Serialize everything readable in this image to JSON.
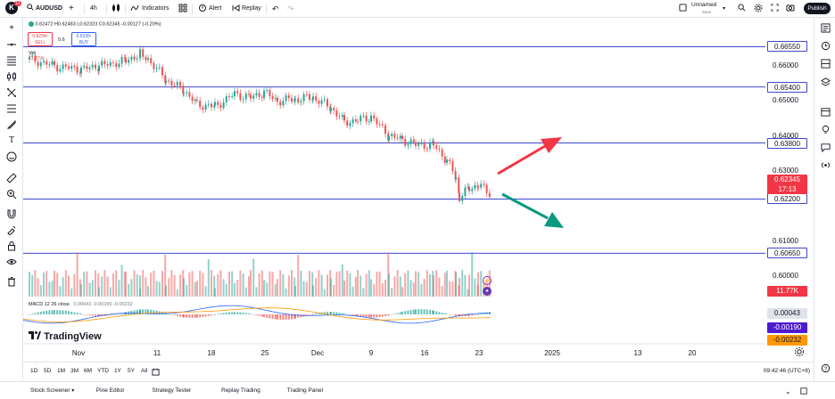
{
  "toolbar": {
    "logo_letter": "K",
    "logo_badge": "11",
    "symbol": "AUDUSD",
    "add_symbol": "+",
    "interval": "4h",
    "indicators_label": "Indicators",
    "alert_label": "Alert",
    "replay_label": "Replay",
    "layout_name": "Unnamed",
    "layout_status": "Save",
    "publish_label": "Publish"
  },
  "legend": {
    "ohlc": "0.62472 H0.62483 L0.62323 C0.62345 -0.00127 (-0.20%)",
    "sell_price": "0.6234⁵",
    "sell_label": "SELL",
    "spread": "0.6",
    "buy_price": "0.6235¹",
    "buy_label": "BUY",
    "vol_label": "Vol",
    "vol_value": "11.77K",
    "macd_label": "MACD 12 26 close",
    "macd_values": "0.00043  -0.00190  -0.00232"
  },
  "price_levels": [
    {
      "label": "0.66550",
      "value": 0.6655,
      "kind": "line"
    },
    {
      "label": "0.65400",
      "value": 0.654,
      "kind": "line"
    },
    {
      "label": "0.63800",
      "value": 0.638,
      "kind": "line"
    },
    {
      "label": "0.62200",
      "value": 0.622,
      "kind": "line"
    },
    {
      "label": "0.60650",
      "value": 0.6065,
      "kind": "line"
    }
  ],
  "price_ticks": [
    {
      "label": "0.66000",
      "value": 0.66
    },
    {
      "label": "0.65000",
      "value": 0.65
    },
    {
      "label": "0.64000",
      "value": 0.64
    },
    {
      "label": "0.63000",
      "value": 0.63
    },
    {
      "label": "0.61000",
      "value": 0.61
    },
    {
      "label": "0.60000",
      "value": 0.6
    }
  ],
  "current_price": {
    "label": "0.62345",
    "countdown": "17:13",
    "value": 0.62345
  },
  "volume_tag": "11.77K",
  "macd_tags": [
    "0.00043",
    "-0.00190",
    "-0.00232"
  ],
  "time_labels": [
    {
      "label": "Nov",
      "x": 88
    },
    {
      "label": "11",
      "x": 176
    },
    {
      "label": "18",
      "x": 237
    },
    {
      "label": "25",
      "x": 297
    },
    {
      "label": "Dec",
      "x": 356
    },
    {
      "label": "9",
      "x": 416
    },
    {
      "label": "16",
      "x": 476
    },
    {
      "label": "23",
      "x": 537
    },
    {
      "label": "2025",
      "x": 619
    },
    {
      "label": "13",
      "x": 715
    },
    {
      "label": "20",
      "x": 776
    }
  ],
  "date_ranges": [
    "1D",
    "5D",
    "1M",
    "3M",
    "6M",
    "YTD",
    "1Y",
    "5Y",
    "All"
  ],
  "clock": "09:42:46 (UTC+8)",
  "bottom_panels": [
    "Stock Screener",
    "Pine Editor",
    "Strategy Tester",
    "Replay Trading",
    "Trading Panel"
  ],
  "watermark": "TradingView",
  "colors": {
    "up": "#26a69a",
    "down": "#ef5350",
    "level_line": "#3f48cc",
    "arrow_up": "#f23645",
    "arrow_down": "#089981",
    "macd": "#2962ff",
    "signal": "#ff9800"
  }
}
